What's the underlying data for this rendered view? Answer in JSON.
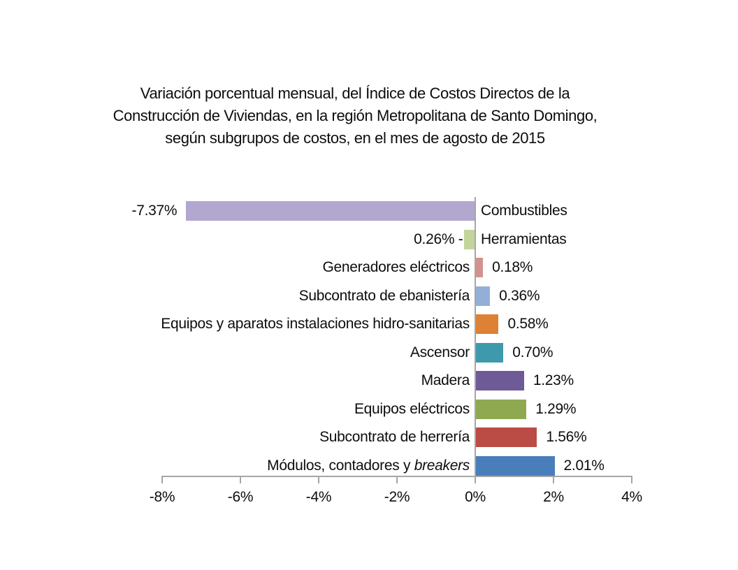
{
  "title": {
    "lines": [
      "Variación porcentual mensual, del Índice de Costos Directos de la",
      "Construcción de Viviendas, en la región Metropolitana de Santo Domingo,",
      "según subgrupos de costos, en el mes de agosto de 2015"
    ]
  },
  "chart_data": {
    "type": "bar",
    "orientation": "horizontal",
    "title": "Variación porcentual mensual, del Índice de Costos Directos de la Construcción de Viviendas, en la región Metropolitana de Santo Domingo, según subgrupos de costos, en el mes de agosto de 2015",
    "xlabel": "",
    "ylabel": "",
    "x_axis": {
      "range_pct": [
        -8,
        4
      ],
      "tick_step_pct": 2,
      "tick_labels": [
        "-8%",
        "-6%",
        "-4%",
        "-2%",
        "0%",
        "2%",
        "4%"
      ]
    },
    "grid": false,
    "legend": false,
    "axis_color": "#a6a6a6",
    "items": [
      {
        "category": "Combustibles",
        "value": -7.37,
        "value_label": "-7.37%",
        "color": "#b2a7ce"
      },
      {
        "category": "Herramientas",
        "value": -0.26,
        "value_label": "0.26% -",
        "color": "#c3d59a"
      },
      {
        "category": "Generadores eléctricos",
        "value": 0.18,
        "value_label": "0.18%",
        "color": "#d39190"
      },
      {
        "category": "Subcontrato de ebanistería",
        "value": 0.36,
        "value_label": "0.36%",
        "color": "#93afd7"
      },
      {
        "category": "Equipos y aparatos instalaciones hidro-sanitarias",
        "value": 0.58,
        "value_label": "0.58%",
        "color": "#dd8134"
      },
      {
        "category": "Ascensor",
        "value": 0.7,
        "value_label": "0.70%",
        "color": "#3f99ac"
      },
      {
        "category": "Madera",
        "value": 1.23,
        "value_label": "1.23%",
        "color": "#6d5a96"
      },
      {
        "category": "Equipos eléctricos",
        "value": 1.29,
        "value_label": "1.29%",
        "color": "#8fa950"
      },
      {
        "category": "Subcontrato de herrería",
        "value": 1.56,
        "value_label": "1.56%",
        "color": "#bb4b45"
      },
      {
        "category": "Módulos, contadores y ",
        "category_italic": "breakers",
        "value": 2.01,
        "value_label": "2.01%",
        "color": "#4a7ebb"
      }
    ]
  }
}
